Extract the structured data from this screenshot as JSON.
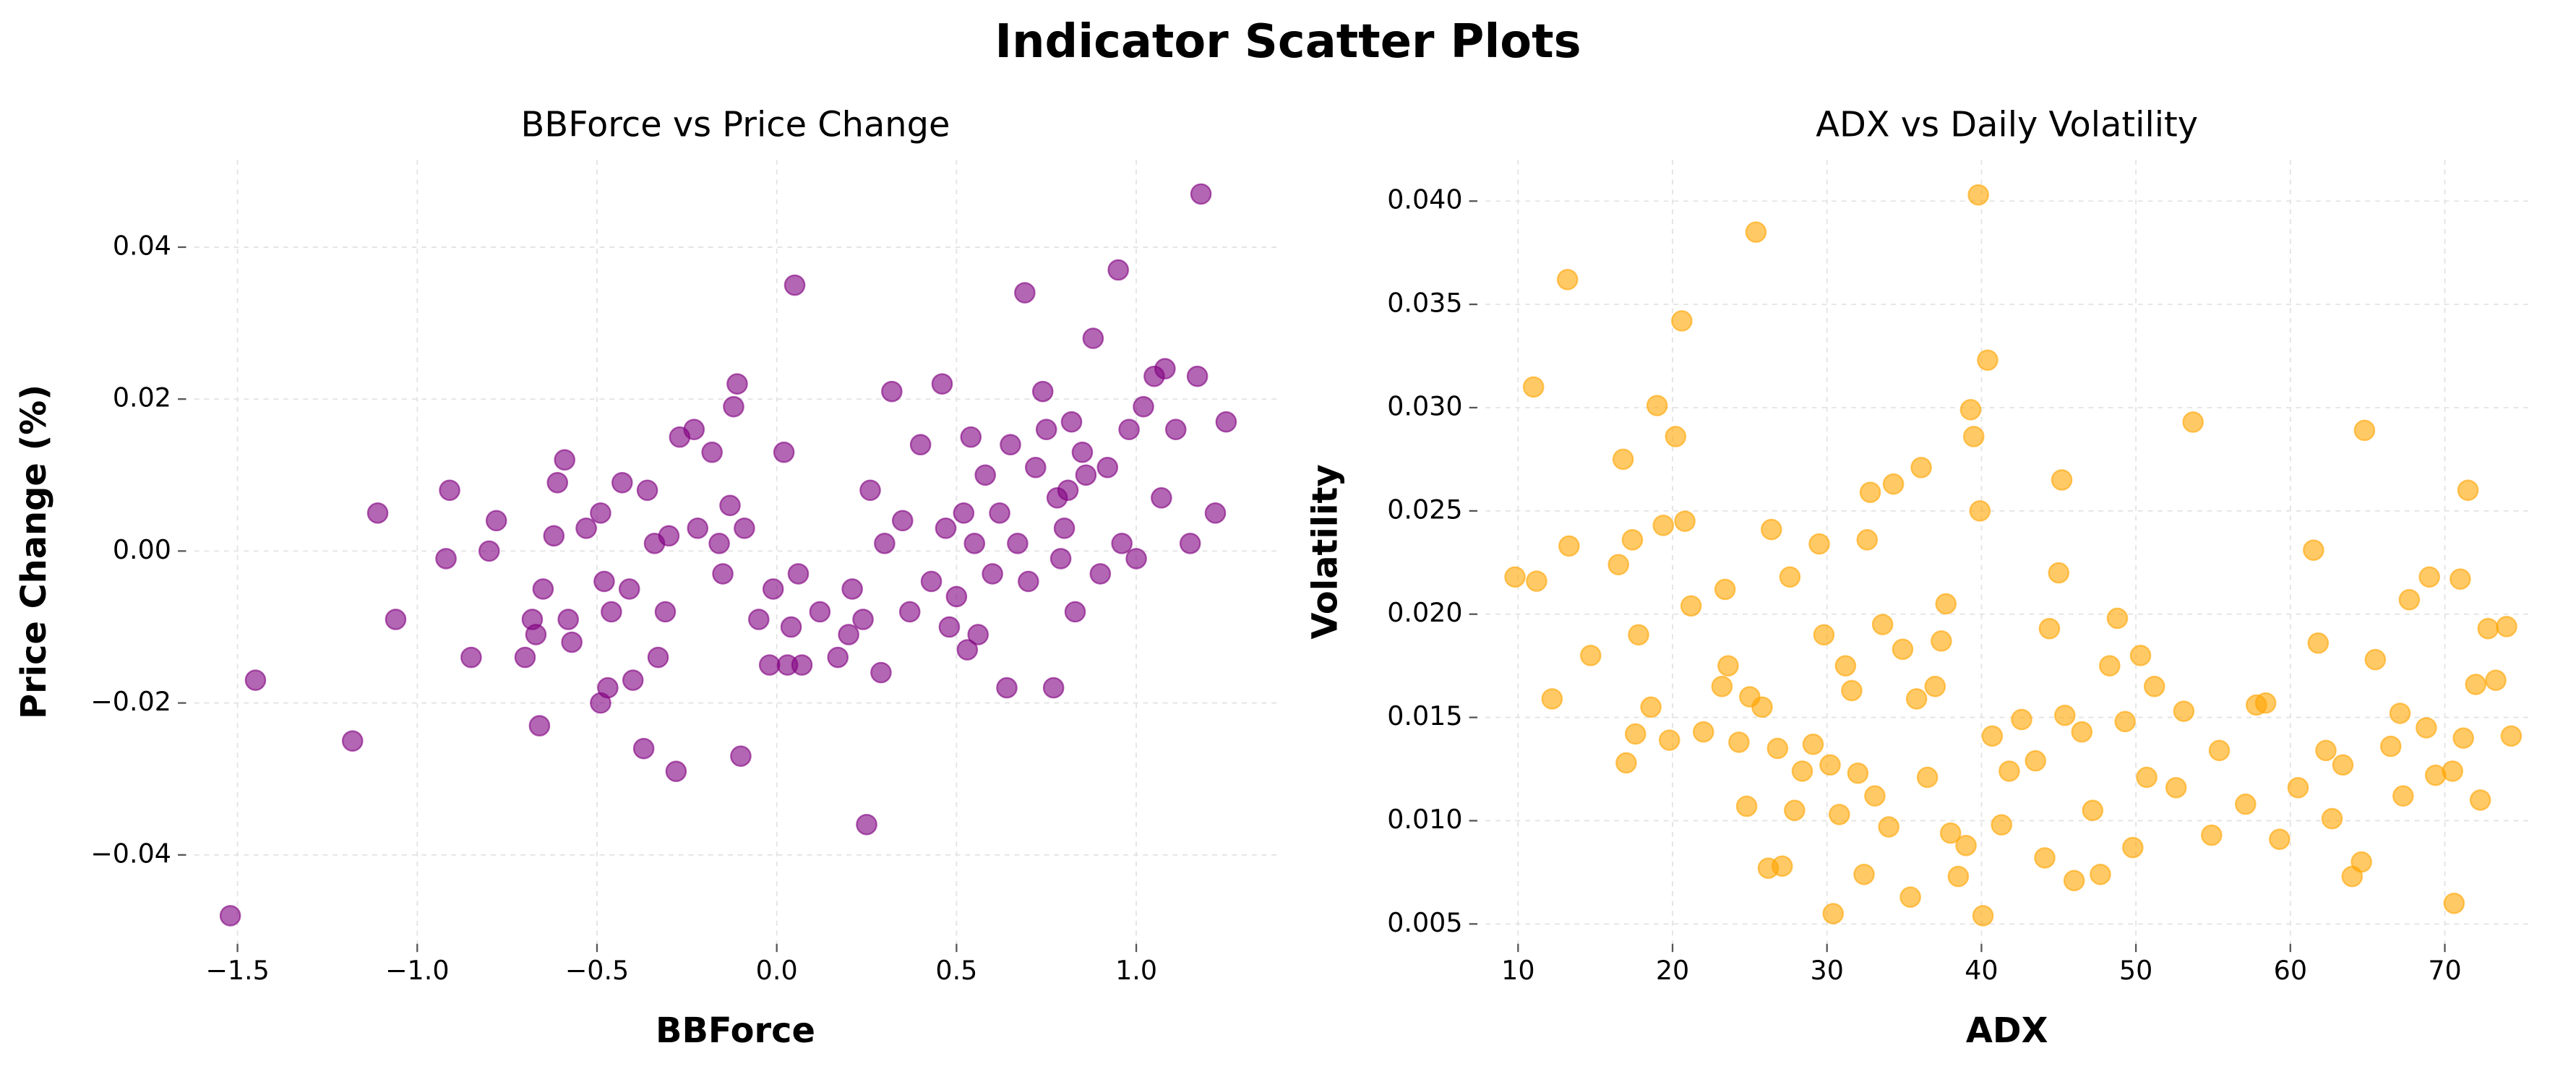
{
  "title": "Indicator Scatter Plots",
  "chart_data": [
    {
      "type": "scatter",
      "title": "BBForce vs Price Change",
      "xlabel": "BBForce",
      "ylabel": "Price Change (%)",
      "color": "#800080",
      "alpha": 0.6,
      "grid": true,
      "xlim": [
        -1.62,
        1.39
      ],
      "ylim": [
        -0.0517,
        0.0515
      ],
      "xticks": [
        {
          "value": -1.5,
          "label": "−1.5"
        },
        {
          "value": -1.0,
          "label": "−1.0"
        },
        {
          "value": -0.5,
          "label": "−0.5"
        },
        {
          "value": 0.0,
          "label": "0.0"
        },
        0.5,
        {
          "value": 1.0,
          "label": "1.0"
        }
      ],
      "yticks": [
        {
          "value": -0.04,
          "label": "−0.04"
        },
        {
          "value": -0.02,
          "label": "−0.02"
        },
        {
          "value": 0.0,
          "label": "0.00"
        },
        0.02,
        0.04
      ],
      "x": [
        -1.52,
        -1.45,
        -1.18,
        -1.11,
        -1.06,
        -0.92,
        -0.91,
        -0.85,
        -0.8,
        -0.78,
        -0.7,
        -0.68,
        -0.67,
        -0.66,
        -0.65,
        -0.62,
        -0.61,
        -0.59,
        -0.58,
        -0.57,
        -0.53,
        -0.49,
        -0.49,
        -0.48,
        -0.47,
        -0.46,
        -0.43,
        -0.41,
        -0.4,
        -0.37,
        -0.36,
        -0.34,
        -0.33,
        -0.31,
        -0.3,
        -0.28,
        -0.27,
        -0.23,
        -0.22,
        -0.18,
        -0.16,
        -0.15,
        -0.13,
        -0.12,
        -0.11,
        -0.1,
        -0.09,
        -0.05,
        -0.02,
        -0.01,
        0.02,
        0.03,
        0.04,
        0.05,
        0.06,
        0.07,
        0.12,
        0.17,
        0.2,
        0.21,
        0.24,
        0.25,
        0.26,
        0.29,
        0.32,
        0.35,
        0.37,
        0.4,
        0.43,
        0.46,
        0.47,
        0.48,
        0.5,
        0.52,
        0.53,
        0.54,
        0.56,
        0.58,
        0.6,
        0.62,
        0.64,
        0.65,
        0.67,
        0.69,
        0.7,
        0.72,
        0.74,
        0.75,
        0.77,
        0.78,
        0.8,
        0.81,
        0.82,
        0.83,
        0.85,
        0.86,
        0.88,
        0.9,
        0.92,
        0.95,
        0.96,
        0.98,
        1.0,
        1.02,
        1.05,
        1.07,
        1.08,
        1.11,
        1.15,
        1.17,
        1.18,
        1.22,
        1.25,
        0.79,
        0.55,
        0.3
      ],
      "values": [
        -0.048,
        -0.017,
        -0.025,
        0.005,
        -0.009,
        -0.001,
        0.008,
        -0.014,
        0.0,
        0.004,
        -0.014,
        -0.009,
        -0.011,
        -0.023,
        -0.005,
        0.002,
        0.009,
        0.012,
        -0.009,
        -0.012,
        0.003,
        -0.02,
        0.005,
        -0.004,
        -0.018,
        -0.008,
        0.009,
        -0.005,
        -0.017,
        -0.026,
        0.008,
        0.001,
        -0.014,
        -0.008,
        0.002,
        -0.029,
        0.015,
        0.016,
        0.003,
        0.013,
        0.001,
        -0.003,
        0.006,
        0.019,
        0.022,
        -0.027,
        0.003,
        -0.009,
        -0.015,
        -0.005,
        0.013,
        -0.015,
        -0.01,
        0.035,
        -0.003,
        -0.015,
        -0.008,
        -0.014,
        -0.011,
        -0.005,
        -0.009,
        -0.036,
        0.008,
        -0.016,
        0.021,
        0.004,
        -0.008,
        0.014,
        -0.004,
        0.022,
        0.003,
        -0.01,
        -0.006,
        0.005,
        -0.013,
        0.015,
        -0.011,
        0.01,
        -0.003,
        0.005,
        -0.018,
        0.014,
        0.001,
        0.034,
        -0.004,
        0.011,
        0.021,
        0.016,
        -0.018,
        0.007,
        0.003,
        0.008,
        0.017,
        -0.008,
        0.013,
        0.01,
        0.028,
        -0.003,
        0.011,
        0.037,
        0.001,
        0.016,
        -0.001,
        0.019,
        0.023,
        0.007,
        0.024,
        0.016,
        0.001,
        0.023,
        0.047,
        0.005,
        0.017,
        -0.001,
        0.001,
        0.001
      ]
    },
    {
      "type": "scatter",
      "title": "ADX vs Daily Volatility",
      "xlabel": "ADX",
      "ylabel": "Volatility",
      "color": "#FFA500",
      "alpha": 0.6,
      "grid": true,
      "xlim": [
        7.9,
        75.4
      ],
      "ylim": [
        0.00404,
        0.042
      ],
      "xticks": [
        10,
        20,
        30,
        40,
        50,
        60,
        70
      ],
      "yticks": [
        0.005,
        {
          "value": 0.01,
          "label": "0.010"
        },
        0.015,
        {
          "value": 0.02,
          "label": "0.020"
        },
        0.025,
        {
          "value": 0.03,
          "label": "0.030"
        },
        0.035,
        {
          "value": 0.04,
          "label": "0.040"
        }
      ],
      "x": [
        9.8,
        11,
        11.2,
        12.2,
        13.2,
        13.3,
        14.7,
        16.5,
        16.8,
        17,
        17.4,
        17.6,
        17.8,
        18.6,
        19,
        19.4,
        19.8,
        20.2,
        20.6,
        20.8,
        21.2,
        22,
        23.2,
        23.4,
        23.6,
        24.3,
        24.8,
        25,
        25.4,
        25.8,
        26.2,
        26.4,
        26.8,
        27.1,
        27.6,
        27.9,
        28.4,
        29.1,
        29.5,
        29.8,
        30.2,
        30.4,
        30.8,
        31.2,
        31.6,
        32,
        32.4,
        32.6,
        32.8,
        33.1,
        33.6,
        34,
        34.3,
        34.9,
        35.4,
        35.8,
        36.1,
        36.5,
        37,
        37.4,
        37.7,
        38,
        38.5,
        39,
        39.3,
        39.5,
        39.8,
        39.9,
        40.1,
        40.4,
        40.7,
        41.3,
        41.8,
        42.6,
        43.5,
        44.1,
        44.4,
        45,
        45.2,
        45.4,
        46,
        46.5,
        47.2,
        47.7,
        48.3,
        48.8,
        49.3,
        49.8,
        50.3,
        50.7,
        51.2,
        52.6,
        53.1,
        53.7,
        54.9,
        55.4,
        57.1,
        57.8,
        58.4,
        59.3,
        60.5,
        61.5,
        61.8,
        62.3,
        62.7,
        63.4,
        64,
        64.6,
        64.8,
        65.5,
        66.5,
        67.1,
        67.3,
        67.7,
        68.8,
        69,
        69.4,
        70.5,
        70.6,
        71,
        71.2,
        71.5,
        72,
        72.3,
        72.8,
        73.3,
        74,
        74.3
      ],
      "values": [
        0.0218,
        0.031,
        0.0216,
        0.0159,
        0.0362,
        0.0233,
        0.018,
        0.0224,
        0.0275,
        0.0128,
        0.0236,
        0.0142,
        0.019,
        0.0155,
        0.0301,
        0.0243,
        0.0139,
        0.0286,
        0.0342,
        0.0245,
        0.0204,
        0.0143,
        0.0165,
        0.0212,
        0.0175,
        0.0138,
        0.0107,
        0.016,
        0.0385,
        0.0155,
        0.0077,
        0.0241,
        0.0135,
        0.0078,
        0.0218,
        0.0105,
        0.0124,
        0.0137,
        0.0234,
        0.019,
        0.0127,
        0.0055,
        0.0103,
        0.0175,
        0.0163,
        0.0123,
        0.0074,
        0.0236,
        0.0259,
        0.0112,
        0.0195,
        0.0097,
        0.0263,
        0.0183,
        0.0063,
        0.0159,
        0.0271,
        0.0121,
        0.0165,
        0.0187,
        0.0205,
        0.0094,
        0.0073,
        0.0088,
        0.0299,
        0.0286,
        0.0403,
        0.025,
        0.0054,
        0.0323,
        0.0141,
        0.0098,
        0.0124,
        0.0149,
        0.0129,
        0.0082,
        0.0193,
        0.022,
        0.0265,
        0.0151,
        0.0071,
        0.0143,
        0.0105,
        0.0074,
        0.0175,
        0.0198,
        0.0148,
        0.0087,
        0.018,
        0.0121,
        0.0165,
        0.0116,
        0.0153,
        0.0293,
        0.0093,
        0.0134,
        0.0108,
        0.0156,
        0.0157,
        0.0091,
        0.0116,
        0.0231,
        0.0186,
        0.0134,
        0.0101,
        0.0127,
        0.0073,
        0.008,
        0.0289,
        0.0178,
        0.0136,
        0.0152,
        0.0112,
        0.0207,
        0.0145,
        0.0218,
        0.0122,
        0.0124,
        0.006,
        0.0217,
        0.014,
        0.026,
        0.0166,
        0.011,
        0.0193,
        0.0168,
        0.0194,
        0.0141
      ]
    }
  ]
}
